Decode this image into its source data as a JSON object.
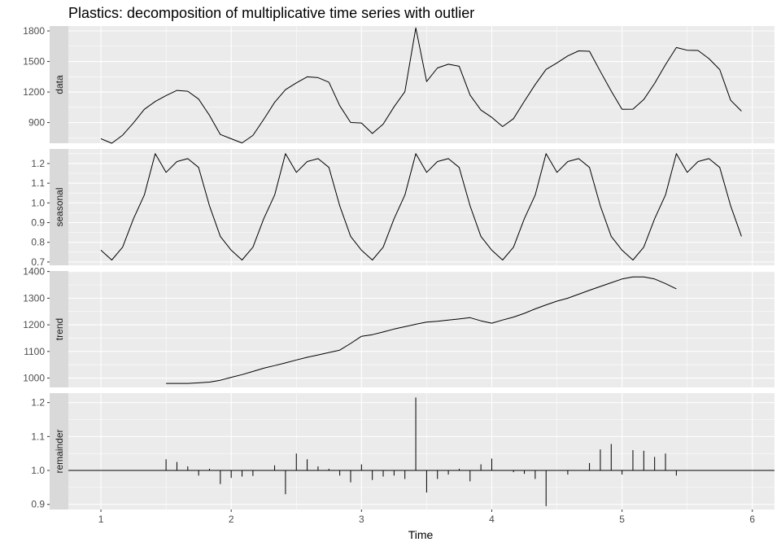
{
  "chart_data": {
    "type": "line",
    "title": "Plastics: decomposition of multiplicative time series with outlier",
    "xlabel": "Time",
    "xlim": [
      0.75,
      6.17
    ],
    "x_ticks": [
      1,
      2,
      3,
      4,
      5,
      6
    ],
    "x_tick_labels": [
      "1",
      "2",
      "3",
      "4",
      "5",
      "6"
    ],
    "grid": true,
    "theme": "ggplot2 grey",
    "line_color": "#000000",
    "panel_background": "#ebebeb",
    "strip_background": "#d9d9d9",
    "grid_color": "#ffffff",
    "panels": [
      {
        "label": "data",
        "style": "line",
        "ylim": [
          697,
          1848
        ],
        "y_ticks": [
          900,
          1200,
          1500,
          1800
        ],
        "y_tick_labels": [
          "900",
          "1200",
          "1500",
          "1800"
        ],
        "x": [
          1.0,
          1.0833,
          1.1667,
          1.25,
          1.3333,
          1.4167,
          1.5,
          1.5833,
          1.6667,
          1.75,
          1.8333,
          1.9167,
          2.0,
          2.0833,
          2.1667,
          2.25,
          2.3333,
          2.4167,
          2.5,
          2.5833,
          2.6667,
          2.75,
          2.8333,
          2.9167,
          3.0,
          3.0833,
          3.1667,
          3.25,
          3.3333,
          3.4167,
          3.5,
          3.5833,
          3.6667,
          3.75,
          3.8333,
          3.9167,
          4.0,
          4.0833,
          4.1667,
          4.25,
          4.3333,
          4.4167,
          4.5,
          4.5833,
          4.6667,
          4.75,
          4.8333,
          4.9167,
          5.0,
          5.0833,
          5.1667,
          5.25,
          5.3333,
          5.4167,
          5.5,
          5.5833,
          5.6667,
          5.75,
          5.8333,
          5.9167
        ],
        "y": [
          742,
          697,
          776,
          898,
          1030,
          1107,
          1165,
          1216,
          1208,
          1131,
          971,
          783,
          741,
          700,
          774,
          932,
          1099,
          1223,
          1290,
          1349,
          1341,
          1296,
          1066,
          901,
          896,
          793,
          885,
          1055,
          1204,
          1830,
          1303,
          1436,
          1473,
          1453,
          1170,
          1023,
          951,
          861,
          938,
          1109,
          1274,
          1422,
          1486,
          1555,
          1604,
          1600,
          1403,
          1209,
          1030,
          1032,
          1126,
          1285,
          1468,
          1637,
          1611,
          1608,
          1528,
          1420,
          1119,
          1013
        ]
      },
      {
        "label": "seasonal",
        "style": "line",
        "ylim": [
          0.683,
          1.274
        ],
        "y_ticks": [
          0.7,
          0.8,
          0.9,
          1.0,
          1.1,
          1.2
        ],
        "y_tick_labels": [
          "0.7",
          "0.8",
          "0.9",
          "1.0",
          "1.1",
          "1.2"
        ],
        "x": [
          1.0,
          1.0833,
          1.1667,
          1.25,
          1.3333,
          1.4167,
          1.5,
          1.5833,
          1.6667,
          1.75,
          1.8333,
          1.9167,
          2.0,
          2.0833,
          2.1667,
          2.25,
          2.3333,
          2.4167,
          2.5,
          2.5833,
          2.6667,
          2.75,
          2.8333,
          2.9167,
          3.0,
          3.0833,
          3.1667,
          3.25,
          3.3333,
          3.4167,
          3.5,
          3.5833,
          3.6667,
          3.75,
          3.8333,
          3.9167,
          4.0,
          4.0833,
          4.1667,
          4.25,
          4.3333,
          4.4167,
          4.5,
          4.5833,
          4.6667,
          4.75,
          4.8333,
          4.9167,
          5.0,
          5.0833,
          5.1667,
          5.25,
          5.3333,
          5.4167,
          5.5,
          5.5833,
          5.6667,
          5.75,
          5.8333,
          5.9167
        ],
        "y": [
          0.76,
          0.71,
          0.775,
          0.92,
          1.04,
          1.25,
          1.155,
          1.21,
          1.225,
          1.18,
          0.985,
          0.83,
          0.76,
          0.71,
          0.775,
          0.92,
          1.04,
          1.25,
          1.155,
          1.21,
          1.225,
          1.18,
          0.985,
          0.83,
          0.76,
          0.71,
          0.775,
          0.92,
          1.04,
          1.25,
          1.155,
          1.21,
          1.225,
          1.18,
          0.985,
          0.83,
          0.76,
          0.71,
          0.775,
          0.92,
          1.04,
          1.25,
          1.155,
          1.21,
          1.225,
          1.18,
          0.985,
          0.83,
          0.76,
          0.71,
          0.775,
          0.92,
          1.04,
          1.25,
          1.155,
          1.21,
          1.225,
          1.18,
          0.985,
          0.83
        ]
      },
      {
        "label": "trend",
        "style": "line",
        "ylim": [
          965,
          1402
        ],
        "y_ticks": [
          1000,
          1100,
          1200,
          1300,
          1400
        ],
        "y_tick_labels": [
          "1000",
          "1100",
          "1200",
          "1300",
          "1400"
        ],
        "x": [
          1.5,
          1.5833,
          1.6667,
          1.75,
          1.8333,
          1.9167,
          2.0,
          2.0833,
          2.1667,
          2.25,
          2.3333,
          2.4167,
          2.5,
          2.5833,
          2.6667,
          2.75,
          2.8333,
          2.9167,
          3.0,
          3.0833,
          3.1667,
          3.25,
          3.3333,
          3.4167,
          3.5,
          3.5833,
          3.6667,
          3.75,
          3.8333,
          3.9167,
          4.0,
          4.0833,
          4.1667,
          4.25,
          4.3333,
          4.4167,
          4.5,
          4.5833,
          4.6667,
          4.75,
          4.8333,
          4.9167,
          5.0,
          5.0833,
          5.1667,
          5.25,
          5.3333,
          5.4167
        ],
        "y": [
          980,
          980,
          980,
          982,
          985,
          992,
          1003,
          1013,
          1025,
          1037,
          1047,
          1057,
          1068,
          1078,
          1087,
          1096,
          1105,
          1130,
          1157,
          1163,
          1173,
          1184,
          1193,
          1202,
          1210,
          1213,
          1218,
          1222,
          1227,
          1215,
          1206,
          1218,
          1229,
          1243,
          1260,
          1275,
          1289,
          1300,
          1315,
          1330,
          1344,
          1358,
          1372,
          1380,
          1380,
          1372,
          1355,
          1335
        ]
      },
      {
        "label": "remainder",
        "style": "spikes",
        "baseline": 1.0,
        "ylim": [
          0.885,
          1.228
        ],
        "y_ticks": [
          0.9,
          1.0,
          1.1,
          1.2
        ],
        "y_tick_labels": [
          "0.9",
          "1.0",
          "1.1",
          "1.2"
        ],
        "x": [
          1.5,
          1.5833,
          1.6667,
          1.75,
          1.8333,
          1.9167,
          2.0,
          2.0833,
          2.1667,
          2.25,
          2.3333,
          2.4167,
          2.5,
          2.5833,
          2.6667,
          2.75,
          2.8333,
          2.9167,
          3.0,
          3.0833,
          3.1667,
          3.25,
          3.3333,
          3.4167,
          3.5,
          3.5833,
          3.6667,
          3.75,
          3.8333,
          3.9167,
          4.0,
          4.0833,
          4.1667,
          4.25,
          4.3333,
          4.4167,
          4.5,
          4.5833,
          4.6667,
          4.75,
          4.8333,
          4.9167,
          5.0,
          5.0833,
          5.1667,
          5.25,
          5.3333,
          5.4167
        ],
        "y": [
          1.033,
          1.025,
          1.012,
          0.985,
          1.005,
          0.96,
          0.978,
          0.982,
          0.984,
          1.0,
          1.015,
          0.93,
          1.05,
          1.033,
          1.012,
          1.005,
          0.985,
          0.965,
          1.018,
          0.972,
          0.982,
          0.985,
          0.975,
          1.215,
          0.935,
          0.975,
          0.988,
          1.005,
          0.968,
          1.018,
          1.035,
          1.0,
          0.995,
          0.99,
          0.975,
          0.895,
          1.0,
          0.988,
          1.0,
          1.022,
          1.062,
          1.078,
          0.988,
          1.06,
          1.058,
          1.04,
          1.05,
          0.985
        ]
      }
    ]
  }
}
